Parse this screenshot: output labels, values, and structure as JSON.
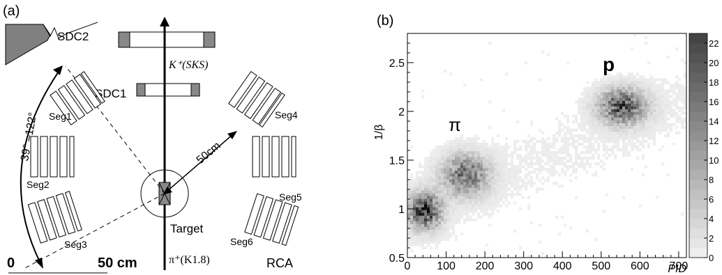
{
  "panel_a": {
    "tag": "(a)",
    "sdc2": "SDC2",
    "sdc1": "SDC1",
    "beam_out": "K⁺(SKS)",
    "beam_in": "π⁺(K1.8)",
    "angle": "39° –122°",
    "distance": "50cm",
    "target": "Target",
    "seg1": "Seg1",
    "seg2": "Seg2",
    "seg3": "Seg3",
    "seg4": "Seg4",
    "seg5": "Seg5",
    "seg6": "Seg6",
    "rca": "RCA",
    "scale_zero": "0",
    "scale_end": "50 cm"
  },
  "panel_b": {
    "tag": "(b)",
    "particle_pi": "π",
    "particle_p": "p"
  },
  "chart_data": {
    "type": "heatmap",
    "xlabel": "PID",
    "ylabel": "1/β",
    "xlim": [
      0,
      720
    ],
    "ylim": [
      0.5,
      2.8
    ],
    "x_ticks": [
      "0",
      "100",
      "200",
      "300",
      "400",
      "500",
      "600",
      "700"
    ],
    "y_ticks": [
      "0.5",
      "1",
      "1.5",
      "2",
      "2.5"
    ],
    "colorbar": {
      "min": 0,
      "max": 23,
      "ticks": [
        "0",
        "2",
        "4",
        "6",
        "8",
        "10",
        "12",
        "14",
        "16",
        "18",
        "20",
        "22"
      ]
    },
    "clusters": [
      {
        "x": 45,
        "y": 0.98,
        "peak": 23
      },
      {
        "x": 150,
        "y": 1.35,
        "peak": 16
      },
      {
        "x": 555,
        "y": 2.05,
        "peak": 20
      }
    ],
    "grid": false
  },
  "colors": {
    "hist_dark": "#404040",
    "hist_light": "#f2f2f2",
    "wedge": "#7f7f7f"
  }
}
